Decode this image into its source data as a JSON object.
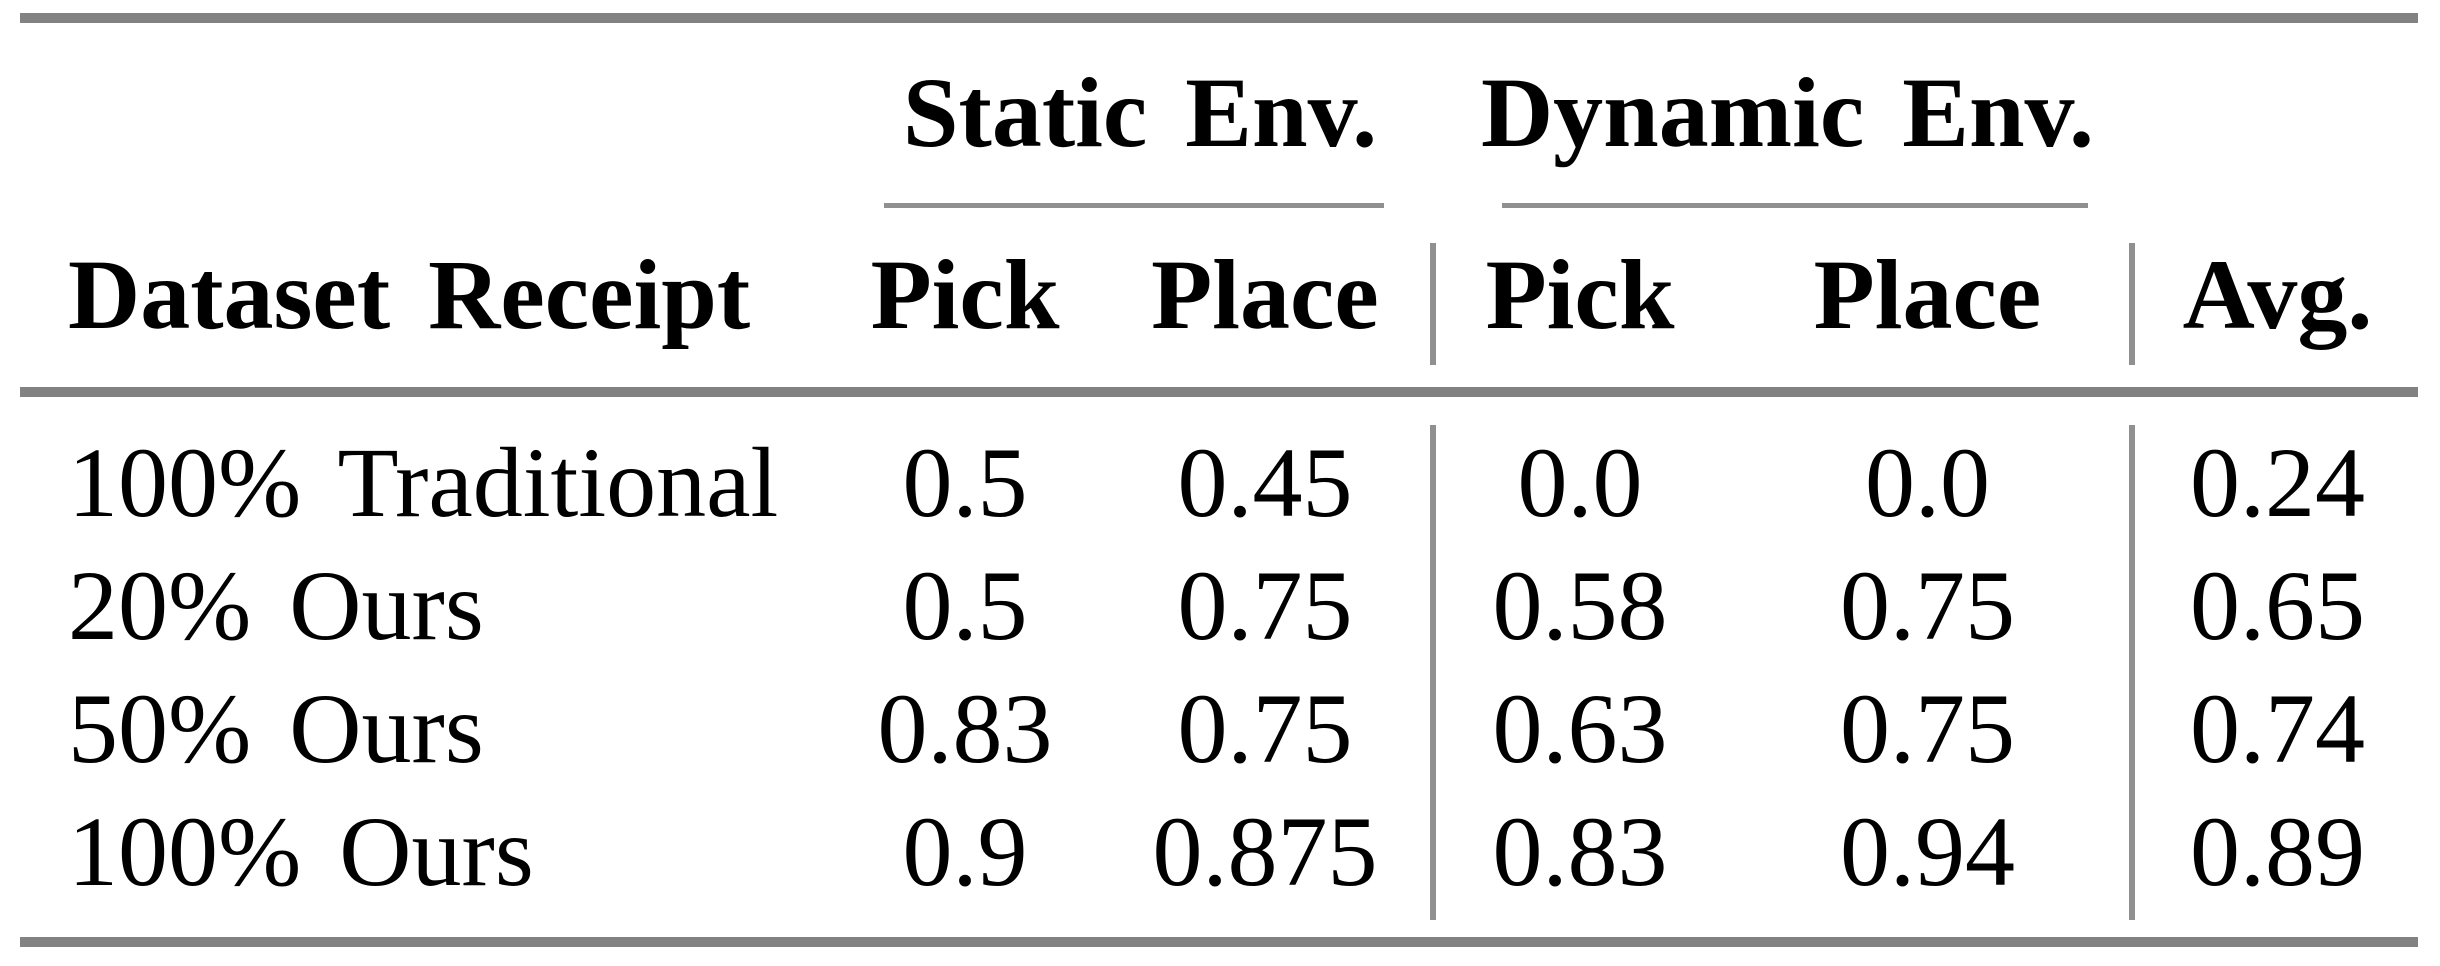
{
  "theme": {
    "background": "#ffffff",
    "text_color": "#000000",
    "rule_thick_color": "#828282",
    "rule_thin_color": "#909090"
  },
  "table": {
    "span_headers": [
      {
        "label": "Static Env."
      },
      {
        "label": "Dynamic Env."
      }
    ],
    "column_headers": {
      "dataset": "Dataset Receipt",
      "static_pick": "Pick",
      "static_place": "Place",
      "dynamic_pick": "Pick",
      "dynamic_place": "Place",
      "avg": "Avg."
    },
    "rows": [
      {
        "label": "100% Traditional",
        "static_pick": "0.5",
        "static_place": "0.45",
        "dynamic_pick": "0.0",
        "dynamic_place": "0.0",
        "avg": "0.24"
      },
      {
        "label": "20% Ours",
        "static_pick": "0.5",
        "static_place": "0.75",
        "dynamic_pick": "0.58",
        "dynamic_place": "0.75",
        "avg": "0.65"
      },
      {
        "label": "50% Ours",
        "static_pick": "0.83",
        "static_place": "0.75",
        "dynamic_pick": "0.63",
        "dynamic_place": "0.75",
        "avg": "0.74"
      },
      {
        "label": "100% Ours",
        "static_pick": "0.9",
        "static_place": "0.875",
        "dynamic_pick": "0.83",
        "dynamic_place": "0.94",
        "avg": "0.89"
      }
    ]
  }
}
